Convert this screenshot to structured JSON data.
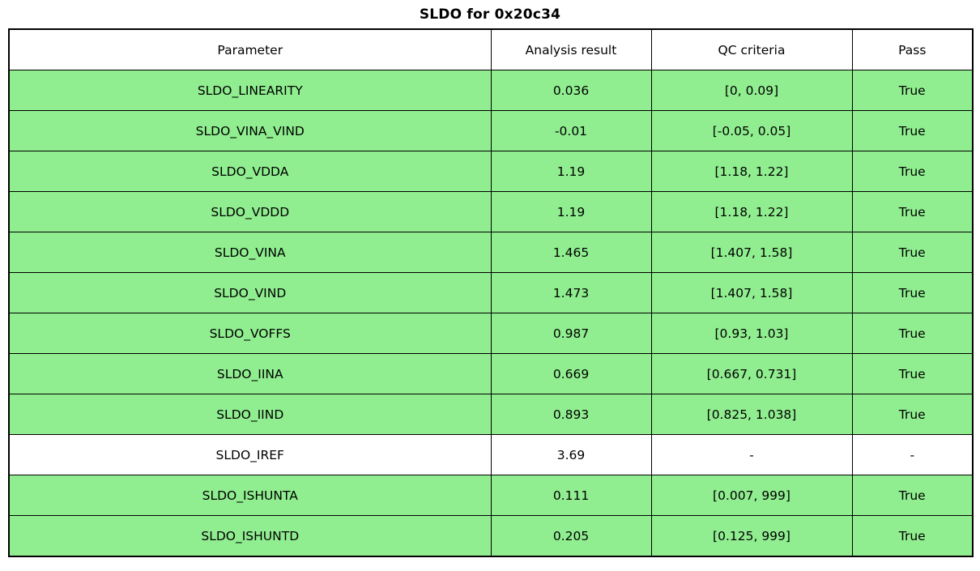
{
  "title": "SLDO for 0x20c34",
  "colors": {
    "pass_row_green": "#90EE90",
    "neutral_row_white": "#FFFFFF",
    "border_black": "#000000"
  },
  "table": {
    "headers": {
      "parameter": "Parameter",
      "result": "Analysis result",
      "criteria": "QC criteria",
      "pass": "Pass"
    },
    "rows": [
      {
        "parameter": "SLDO_LINEARITY",
        "result": "0.036",
        "criteria": "[0, 0.09]",
        "pass": "True",
        "highlight": true
      },
      {
        "parameter": "SLDO_VINA_VIND",
        "result": "-0.01",
        "criteria": "[-0.05, 0.05]",
        "pass": "True",
        "highlight": true
      },
      {
        "parameter": "SLDO_VDDA",
        "result": "1.19",
        "criteria": "[1.18, 1.22]",
        "pass": "True",
        "highlight": true
      },
      {
        "parameter": "SLDO_VDDD",
        "result": "1.19",
        "criteria": "[1.18, 1.22]",
        "pass": "True",
        "highlight": true
      },
      {
        "parameter": "SLDO_VINA",
        "result": "1.465",
        "criteria": "[1.407, 1.58]",
        "pass": "True",
        "highlight": true
      },
      {
        "parameter": "SLDO_VIND",
        "result": "1.473",
        "criteria": "[1.407, 1.58]",
        "pass": "True",
        "highlight": true
      },
      {
        "parameter": "SLDO_VOFFS",
        "result": "0.987",
        "criteria": "[0.93, 1.03]",
        "pass": "True",
        "highlight": true
      },
      {
        "parameter": "SLDO_IINA",
        "result": "0.669",
        "criteria": "[0.667, 0.731]",
        "pass": "True",
        "highlight": true
      },
      {
        "parameter": "SLDO_IIND",
        "result": "0.893",
        "criteria": "[0.825, 1.038]",
        "pass": "True",
        "highlight": true
      },
      {
        "parameter": "SLDO_IREF",
        "result": "3.69",
        "criteria": "-",
        "pass": "-",
        "highlight": false
      },
      {
        "parameter": "SLDO_ISHUNTA",
        "result": "0.111",
        "criteria": "[0.007, 999]",
        "pass": "True",
        "highlight": true
      },
      {
        "parameter": "SLDO_ISHUNTD",
        "result": "0.205",
        "criteria": "[0.125, 999]",
        "pass": "True",
        "highlight": true
      }
    ]
  },
  "chart_data": {
    "type": "table",
    "title": "SLDO for 0x20c34",
    "columns": [
      "Parameter",
      "Analysis result",
      "QC criteria",
      "Pass"
    ],
    "rows": [
      [
        "SLDO_LINEARITY",
        "0.036",
        "[0, 0.09]",
        "True"
      ],
      [
        "SLDO_VINA_VIND",
        "-0.01",
        "[-0.05, 0.05]",
        "True"
      ],
      [
        "SLDO_VDDA",
        "1.19",
        "[1.18, 1.22]",
        "True"
      ],
      [
        "SLDO_VDDD",
        "1.19",
        "[1.18, 1.22]",
        "True"
      ],
      [
        "SLDO_VINA",
        "1.465",
        "[1.407, 1.58]",
        "True"
      ],
      [
        "SLDO_VIND",
        "1.473",
        "[1.407, 1.58]",
        "True"
      ],
      [
        "SLDO_VOFFS",
        "0.987",
        "[0.93, 1.03]",
        "True"
      ],
      [
        "SLDO_IINA",
        "0.669",
        "[0.667, 0.731]",
        "True"
      ],
      [
        "SLDO_IIND",
        "0.893",
        "[0.825, 1.038]",
        "True"
      ],
      [
        "SLDO_IREF",
        "3.69",
        "-",
        "-"
      ],
      [
        "SLDO_ISHUNTA",
        "0.111",
        "[0.007, 999]",
        "True"
      ],
      [
        "SLDO_ISHUNTD",
        "0.205",
        "[0.125, 999]",
        "True"
      ]
    ],
    "legend": "green row = QC pass (True), white row = not evaluated",
    "highlight_color": "#90EE90"
  }
}
